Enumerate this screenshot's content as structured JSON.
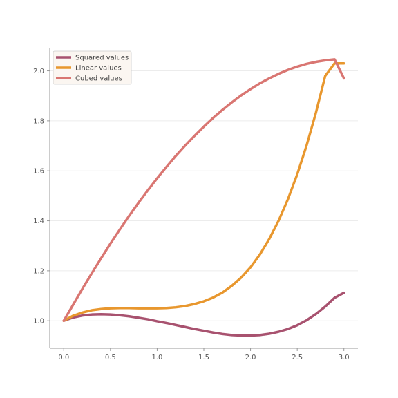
{
  "chart_data": {
    "type": "line",
    "title": "",
    "xlabel": "",
    "ylabel": "",
    "xlim": [
      -0.15,
      3.15
    ],
    "ylim": [
      0.89,
      2.09
    ],
    "x_ticks": [
      0.0,
      0.5,
      1.0,
      1.5,
      2.0,
      2.5,
      3.0
    ],
    "x_tick_labels": [
      "0.0",
      "0.5",
      "1.0",
      "1.5",
      "2.0",
      "2.5",
      "3.0"
    ],
    "y_ticks": [
      1.0,
      1.2,
      1.4,
      1.6,
      1.8,
      2.0
    ],
    "y_tick_labels": [
      "1.0",
      "1.2",
      "1.4",
      "1.6",
      "1.8",
      "2.0"
    ],
    "grid": "horizontal",
    "legend_position": "top-left",
    "x": [
      0.0,
      0.1,
      0.2,
      0.3,
      0.4,
      0.5,
      0.6,
      0.7,
      0.8,
      0.9,
      1.0,
      1.1,
      1.2,
      1.3,
      1.4,
      1.5,
      1.6,
      1.7,
      1.8,
      1.9,
      2.0,
      2.1,
      2.2,
      2.3,
      2.4,
      2.5,
      2.6,
      2.7,
      2.8,
      2.9,
      3.0
    ],
    "series": [
      {
        "name": "Squared values",
        "color": "#a8526f",
        "values": [
          1.0,
          1.013,
          1.021,
          1.025,
          1.026,
          1.025,
          1.022,
          1.018,
          1.012,
          1.006,
          0.998,
          0.991,
          0.983,
          0.975,
          0.967,
          0.96,
          0.953,
          0.947,
          0.943,
          0.941,
          0.941,
          0.943,
          0.948,
          0.956,
          0.967,
          0.982,
          1.002,
          1.027,
          1.057,
          1.092,
          1.112
        ]
      },
      {
        "name": "Linear values",
        "color": "#e8972e",
        "values": [
          1.0,
          1.02,
          1.033,
          1.042,
          1.047,
          1.05,
          1.051,
          1.051,
          1.05,
          1.05,
          1.05,
          1.051,
          1.054,
          1.059,
          1.067,
          1.078,
          1.093,
          1.113,
          1.14,
          1.173,
          1.214,
          1.265,
          1.327,
          1.4,
          1.486,
          1.586,
          1.701,
          1.832,
          1.98,
          2.03,
          2.03
        ]
      },
      {
        "name": "Cubed values",
        "color": "#d97672",
        "values": [
          1.0,
          1.064,
          1.128,
          1.19,
          1.25,
          1.309,
          1.365,
          1.42,
          1.472,
          1.522,
          1.57,
          1.616,
          1.66,
          1.701,
          1.74,
          1.777,
          1.812,
          1.844,
          1.874,
          1.902,
          1.927,
          1.95,
          1.97,
          1.988,
          2.004,
          2.017,
          2.028,
          2.036,
          2.042,
          2.046,
          1.97
        ]
      }
    ]
  }
}
